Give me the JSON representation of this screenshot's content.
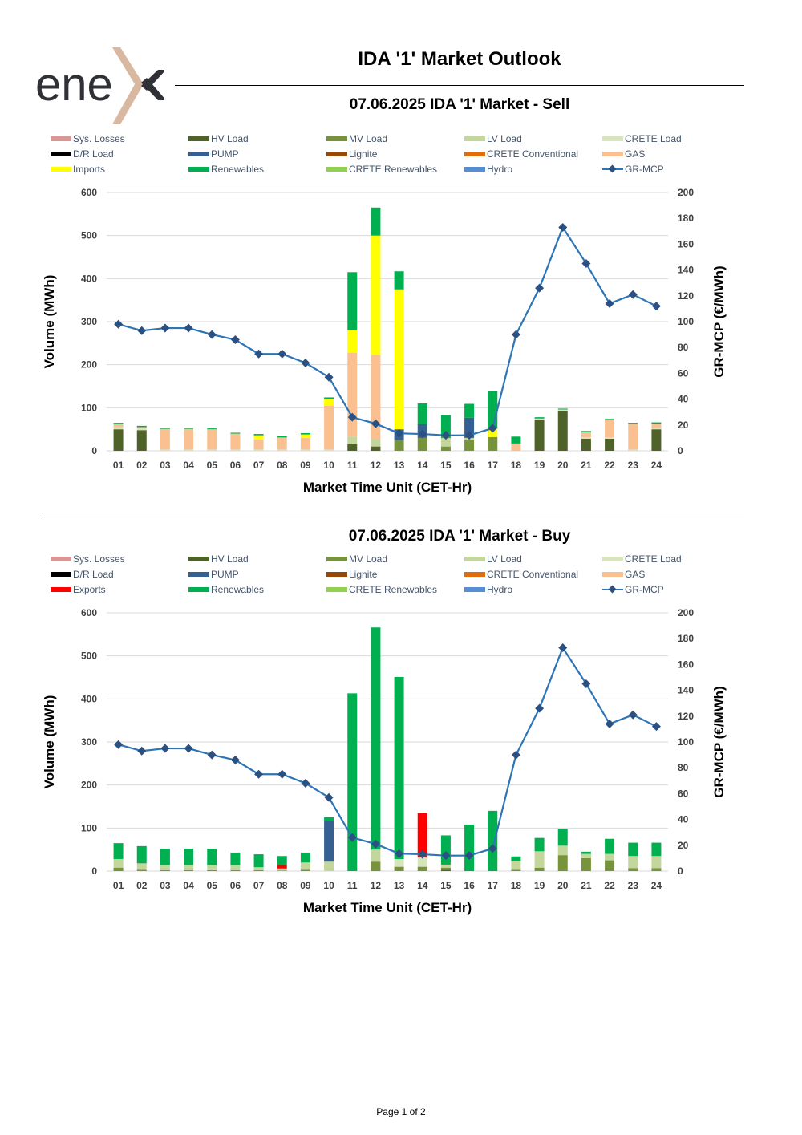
{
  "logo": {
    "text": "ene",
    "accent": "x"
  },
  "title": "IDA '1' Market Outlook",
  "footer": "Page 1 of 2",
  "colors": {
    "sys_losses": "#da9694",
    "hv_load": "#4f6228",
    "mv_load": "#77933c",
    "lv_load": "#c3d69b",
    "crete_load": "#d8e4bc",
    "dr_load": "#000000",
    "pump": "#366092",
    "lignite": "#974706",
    "crete_conventional": "#e26b0a",
    "gas": "#fac090",
    "imports": "#ffff00",
    "exports": "#ff0000",
    "renewables": "#00b050",
    "crete_renewables": "#92d050",
    "hydro": "#558ed5",
    "mcp_line": "#2e75b6",
    "mcp_marker": "#2b5183"
  },
  "charts": [
    {
      "title": "07.06.2025  IDA '1' Market - Sell",
      "legend": [
        {
          "label": "Sys. Losses",
          "key": "sys_losses"
        },
        {
          "label": "HV Load",
          "key": "hv_load"
        },
        {
          "label": "MV Load",
          "key": "mv_load"
        },
        {
          "label": "LV Load",
          "key": "lv_load"
        },
        {
          "label": "CRETE Load",
          "key": "crete_load"
        },
        {
          "label": "D/R Load",
          "key": "dr_load"
        },
        {
          "label": "PUMP",
          "key": "pump"
        },
        {
          "label": "Lignite",
          "key": "lignite"
        },
        {
          "label": "CRETE Conventional",
          "key": "crete_conventional"
        },
        {
          "label": "GAS",
          "key": "gas"
        },
        {
          "label": "Imports",
          "key": "imports"
        },
        {
          "label": "Renewables",
          "key": "renewables"
        },
        {
          "label": "CRETE Renewables",
          "key": "crete_renewables"
        },
        {
          "label": "Hydro",
          "key": "hydro"
        },
        {
          "label": "GR-MCP",
          "key": "line"
        }
      ]
    },
    {
      "title": "07.06.2025  IDA '1' Market - Buy",
      "legend": [
        {
          "label": "Sys. Losses",
          "key": "sys_losses"
        },
        {
          "label": "HV Load",
          "key": "hv_load"
        },
        {
          "label": "MV Load",
          "key": "mv_load"
        },
        {
          "label": "LV Load",
          "key": "lv_load"
        },
        {
          "label": "CRETE Load",
          "key": "crete_load"
        },
        {
          "label": "D/R Load",
          "key": "dr_load"
        },
        {
          "label": "PUMP",
          "key": "pump"
        },
        {
          "label": "Lignite",
          "key": "lignite"
        },
        {
          "label": "CRETE Conventional",
          "key": "crete_conventional"
        },
        {
          "label": "GAS",
          "key": "gas"
        },
        {
          "label": "Exports",
          "key": "exports"
        },
        {
          "label": "Renewables",
          "key": "renewables"
        },
        {
          "label": "CRETE Renewables",
          "key": "crete_renewables"
        },
        {
          "label": "Hydro",
          "key": "hydro"
        },
        {
          "label": "GR-MCP",
          "key": "line"
        }
      ]
    }
  ],
  "chart_data": [
    {
      "type": "bar",
      "title": "07.06.2025  IDA '1' Market - Sell",
      "xlabel": "Market Time Unit (CET-Hr)",
      "ylabel": "Volume (MWh)",
      "y2label": "GR-MCP (€/MWh)",
      "ylim": [
        0,
        600
      ],
      "yticks": [
        0,
        100,
        200,
        300,
        400,
        500,
        600
      ],
      "y2lim": [
        0,
        200
      ],
      "y2ticks": [
        0,
        20,
        40,
        60,
        80,
        100,
        120,
        140,
        160,
        180,
        200
      ],
      "categories": [
        "01",
        "02",
        "03",
        "04",
        "05",
        "06",
        "07",
        "08",
        "09",
        "10",
        "11",
        "12",
        "13",
        "14",
        "15",
        "16",
        "17",
        "18",
        "19",
        "20",
        "21",
        "22",
        "23",
        "24"
      ],
      "series": [
        {
          "name": "HV Load",
          "key": "hv_load",
          "values": [
            50,
            48,
            0,
            0,
            0,
            0,
            0,
            0,
            0,
            0,
            15,
            10,
            0,
            0,
            0,
            0,
            0,
            0,
            72,
            93,
            28,
            28,
            0,
            50
          ]
        },
        {
          "name": "MV Load",
          "key": "mv_load",
          "values": [
            0,
            0,
            0,
            0,
            0,
            0,
            0,
            0,
            0,
            0,
            0,
            0,
            25,
            30,
            10,
            25,
            32,
            0,
            0,
            0,
            0,
            0,
            0,
            0
          ]
        },
        {
          "name": "LV Load",
          "key": "lv_load",
          "values": [
            0,
            0,
            0,
            0,
            0,
            0,
            0,
            0,
            0,
            0,
            18,
            18,
            0,
            0,
            20,
            5,
            0,
            0,
            0,
            0,
            0,
            0,
            0,
            0
          ]
        },
        {
          "name": "CRETE Load",
          "key": "crete_load",
          "values": [
            5,
            4,
            3,
            3,
            3,
            3,
            3,
            3,
            3,
            3,
            0,
            0,
            0,
            0,
            0,
            0,
            0,
            0,
            3,
            3,
            3,
            3,
            3,
            3
          ]
        },
        {
          "name": "PUMP",
          "key": "pump",
          "values": [
            0,
            0,
            0,
            0,
            0,
            0,
            0,
            0,
            0,
            0,
            0,
            0,
            25,
            32,
            0,
            47,
            0,
            0,
            0,
            0,
            0,
            0,
            0,
            0
          ]
        },
        {
          "name": "GAS",
          "key": "gas",
          "values": [
            7,
            3,
            48,
            48,
            47,
            37,
            23,
            28,
            27,
            102,
            195,
            195,
            0,
            0,
            0,
            0,
            0,
            17,
            0,
            0,
            12,
            40,
            60,
            10
          ]
        },
        {
          "name": "Imports",
          "key": "imports",
          "values": [
            0,
            0,
            0,
            0,
            0,
            0,
            10,
            0,
            8,
            15,
            52,
            277,
            325,
            0,
            0,
            0,
            20,
            0,
            0,
            0,
            0,
            0,
            0,
            0
          ]
        },
        {
          "name": "Renewables",
          "key": "renewables",
          "values": [
            3,
            3,
            2,
            2,
            2,
            2,
            3,
            3,
            3,
            4,
            135,
            65,
            42,
            48,
            53,
            32,
            86,
            16,
            3,
            2,
            3,
            3,
            2,
            3
          ]
        }
      ],
      "line": {
        "name": "GR-MCP",
        "values": [
          98,
          93,
          95,
          95,
          90,
          86,
          75,
          75,
          68,
          57,
          26,
          21,
          13.5,
          13,
          12,
          12,
          17.5,
          90,
          126,
          173,
          145,
          114,
          121,
          112
        ]
      }
    },
    {
      "type": "bar",
      "title": "07.06.2025  IDA '1' Market - Buy",
      "xlabel": "Market Time Unit (CET-Hr)",
      "ylabel": "Volume (MWh)",
      "y2label": "GR-MCP (€/MWh)",
      "ylim": [
        0,
        600
      ],
      "yticks": [
        0,
        100,
        200,
        300,
        400,
        500,
        600
      ],
      "y2lim": [
        0,
        200
      ],
      "y2ticks": [
        0,
        20,
        40,
        60,
        80,
        100,
        120,
        140,
        160,
        180,
        200
      ],
      "categories": [
        "01",
        "02",
        "03",
        "04",
        "05",
        "06",
        "07",
        "08",
        "09",
        "10",
        "11",
        "12",
        "13",
        "14",
        "15",
        "16",
        "17",
        "18",
        "19",
        "20",
        "21",
        "22",
        "23",
        "24"
      ],
      "series": [
        {
          "name": "HV Load",
          "key": "hv_load",
          "values": [
            0,
            0,
            0,
            0,
            0,
            0,
            0,
            0,
            0,
            0,
            0,
            0,
            0,
            0,
            3,
            0,
            0,
            0,
            0,
            0,
            0,
            0,
            0,
            0
          ]
        },
        {
          "name": "MV Load",
          "key": "mv_load",
          "values": [
            8,
            3,
            2,
            2,
            2,
            2,
            2,
            1,
            3,
            0,
            0,
            22,
            10,
            10,
            5,
            0,
            0,
            3,
            8,
            37,
            30,
            25,
            7,
            7
          ]
        },
        {
          "name": "LV Load",
          "key": "lv_load",
          "values": [
            20,
            15,
            12,
            12,
            12,
            12,
            7,
            5,
            17,
            22,
            0,
            28,
            0,
            0,
            7,
            0,
            0,
            20,
            38,
            22,
            10,
            15,
            28,
            28
          ]
        },
        {
          "name": "CRETE Load",
          "key": "crete_load",
          "values": [
            0,
            0,
            0,
            0,
            0,
            0,
            0,
            0,
            0,
            0,
            0,
            0,
            18,
            22,
            0,
            0,
            0,
            0,
            0,
            0,
            0,
            0,
            0,
            0
          ]
        },
        {
          "name": "PUMP",
          "key": "pump",
          "values": [
            0,
            0,
            0,
            0,
            0,
            0,
            0,
            0,
            0,
            95,
            0,
            0,
            0,
            0,
            0,
            0,
            0,
            0,
            0,
            0,
            0,
            0,
            0,
            0
          ]
        },
        {
          "name": "Exports",
          "key": "exports",
          "values": [
            0,
            0,
            0,
            0,
            0,
            0,
            0,
            8,
            0,
            0,
            0,
            0,
            0,
            103,
            0,
            0,
            0,
            0,
            0,
            0,
            0,
            0,
            0,
            0
          ]
        },
        {
          "name": "Renewables",
          "key": "renewables",
          "values": [
            37,
            40,
            38,
            38,
            38,
            29,
            30,
            21,
            23,
            8,
            413,
            516,
            423,
            0,
            68,
            108,
            140,
            11,
            31,
            39,
            5,
            35,
            31,
            31
          ]
        }
      ],
      "line": {
        "name": "GR-MCP",
        "values": [
          98,
          93,
          95,
          95,
          90,
          86,
          75,
          75,
          68,
          57,
          26,
          21,
          13.5,
          13,
          12,
          12,
          17.5,
          90,
          126,
          173,
          145,
          114,
          121,
          112
        ]
      }
    }
  ]
}
